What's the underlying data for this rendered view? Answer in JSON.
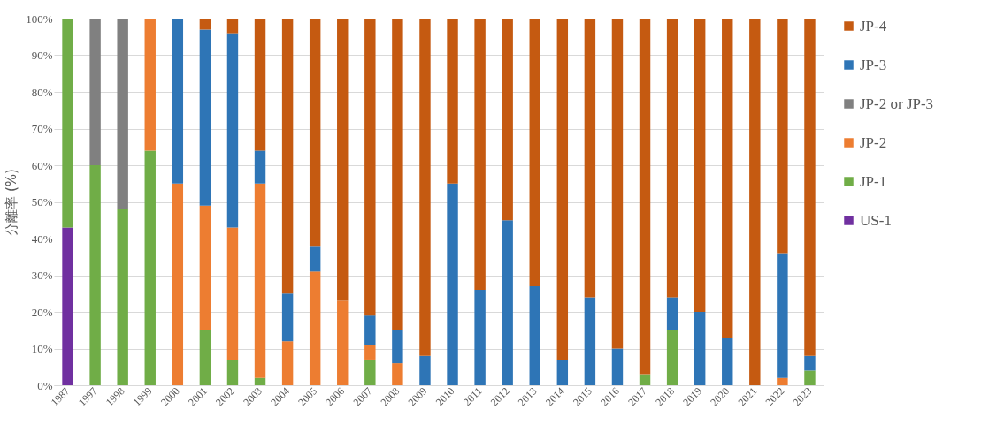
{
  "chart_data": {
    "type": "bar",
    "stacked": true,
    "ylabel": "分離率 (%)",
    "categories": [
      "1987",
      "1997",
      "1998",
      "1999",
      "2000",
      "2001",
      "2002",
      "2003",
      "2004",
      "2005",
      "2006",
      "2007",
      "2008",
      "2009",
      "2010",
      "2011",
      "2012",
      "2013",
      "2014",
      "2015",
      "2016",
      "2017",
      "2018",
      "2019",
      "2020",
      "2021",
      "2022",
      "2023"
    ],
    "series": [
      {
        "name": "US-1",
        "color": "#7030a0",
        "values": [
          43,
          0,
          0,
          0,
          0,
          0,
          0,
          0,
          0,
          0,
          0,
          0,
          0,
          0,
          0,
          0,
          0,
          0,
          0,
          0,
          0,
          0,
          0,
          0,
          0,
          0,
          0,
          0
        ]
      },
      {
        "name": "JP-1",
        "color": "#70ad47",
        "values": [
          57,
          60,
          48,
          64,
          0,
          15,
          7,
          2,
          0,
          0,
          0,
          7,
          0,
          0,
          0,
          0,
          0,
          0,
          0,
          0,
          0,
          3,
          15,
          0,
          0,
          0,
          0,
          4
        ]
      },
      {
        "name": "JP-2",
        "color": "#ed7d31",
        "values": [
          0,
          0,
          0,
          36,
          55,
          34,
          36,
          53,
          12,
          31,
          23,
          4,
          6,
          0,
          0,
          0,
          0,
          0,
          0,
          0,
          0,
          0,
          0,
          0,
          0,
          0,
          2,
          0
        ]
      },
      {
        "name": "JP-2 or JP-3",
        "color": "#808080",
        "values": [
          0,
          40,
          52,
          0,
          0,
          0,
          0,
          0,
          0,
          0,
          0,
          0,
          0,
          0,
          0,
          0,
          0,
          0,
          0,
          0,
          0,
          0,
          0,
          0,
          0,
          0,
          0,
          0
        ]
      },
      {
        "name": "JP-3",
        "color": "#2e75b6",
        "values": [
          0,
          0,
          0,
          0,
          45,
          48,
          53,
          9,
          13,
          7,
          0,
          8,
          9,
          8,
          55,
          26,
          45,
          27,
          7,
          24,
          10,
          0,
          9,
          20,
          13,
          0,
          34,
          4
        ]
      },
      {
        "name": "JP-4",
        "color": "#c55a11",
        "values": [
          0,
          0,
          0,
          0,
          0,
          3,
          4,
          36,
          75,
          62,
          77,
          81,
          85,
          92,
          45,
          74,
          55,
          73,
          93,
          76,
          90,
          97,
          76,
          80,
          87,
          100,
          64,
          92
        ]
      }
    ],
    "ylim": [
      0,
      100
    ],
    "yticks": [
      {
        "value": 0,
        "label": "0%"
      },
      {
        "value": 10,
        "label": "10%"
      },
      {
        "value": 20,
        "label": "20%"
      },
      {
        "value": 30,
        "label": "30%"
      },
      {
        "value": 40,
        "label": "40%"
      },
      {
        "value": 50,
        "label": "50%"
      },
      {
        "value": 60,
        "label": "60%"
      },
      {
        "value": 70,
        "label": "70%"
      },
      {
        "value": 80,
        "label": "80%"
      },
      {
        "value": 90,
        "label": "90%"
      },
      {
        "value": 100,
        "label": "100%"
      }
    ],
    "grid": "y",
    "legend": "right"
  }
}
